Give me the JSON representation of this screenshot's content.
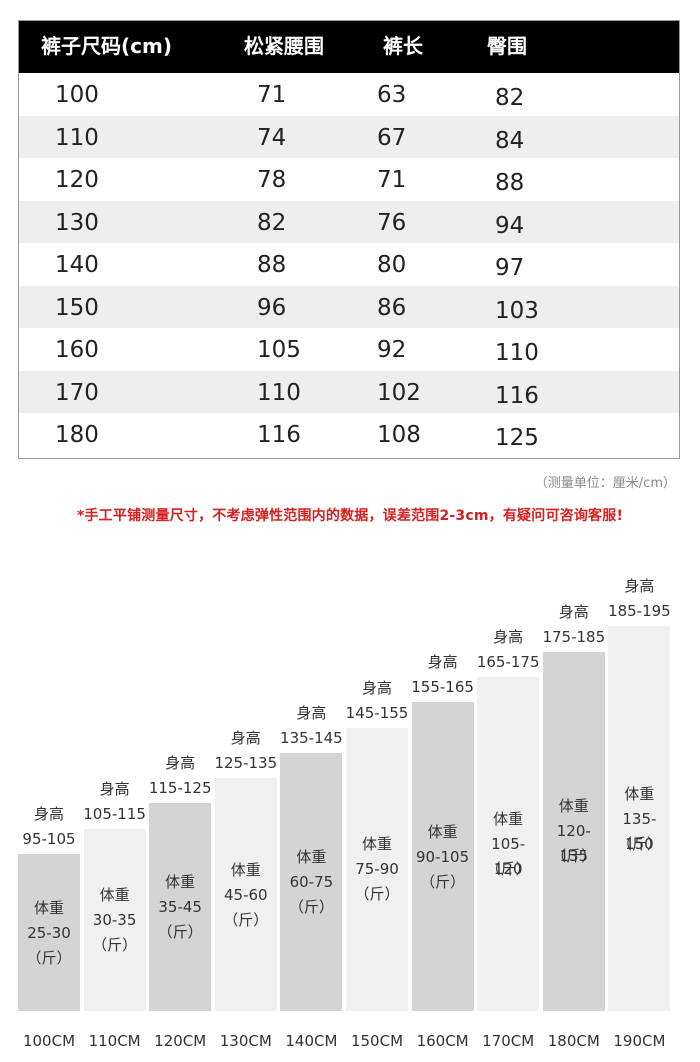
{
  "size_table": {
    "headers": [
      "裤子尺码(cm)",
      "松紧腰围",
      "裤长",
      "臀围"
    ],
    "rows": [
      [
        "100",
        "71",
        "63",
        "82"
      ],
      [
        "110",
        "74",
        "67",
        "84"
      ],
      [
        "120",
        "78",
        "71",
        "88"
      ],
      [
        "130",
        "82",
        "76",
        "94"
      ],
      [
        "140",
        "88",
        "80",
        "97"
      ],
      [
        "150",
        "96",
        "86",
        "103"
      ],
      [
        "160",
        "105",
        "92",
        "110"
      ],
      [
        "170",
        "110",
        "102",
        "116"
      ],
      [
        "180",
        "116",
        "108",
        "125"
      ]
    ]
  },
  "unit_note": "（测量单位：厘米/cm）",
  "disclaimer": "*手工平铺测量尺寸，不考虑弹性范围内的数据，误差范围2-3cm，有疑问可咨询客服!",
  "chart_data": {
    "type": "bar",
    "categories": [
      "100CM",
      "110CM",
      "120CM",
      "130CM",
      "140CM",
      "150CM",
      "160CM",
      "170CM",
      "180CM",
      "190CM"
    ],
    "height_label": "身高",
    "weight_label": "体重",
    "weight_unit": "（斤）",
    "heights": [
      "95-105",
      "105-115",
      "115-125",
      "125-135",
      "135-145",
      "145-155",
      "155-165",
      "165-175",
      "175-185",
      "185-195"
    ],
    "weights": [
      "25-30",
      "30-35",
      "35-45",
      "45-60",
      "60-75",
      "75-90",
      "90-105",
      "105-120",
      "120-135",
      "135-150"
    ],
    "values": [
      100,
      110,
      120,
      130,
      140,
      150,
      160,
      170,
      180,
      190
    ],
    "colors": {
      "dark": "#d4d4d4",
      "light": "#f0f0f0"
    }
  }
}
